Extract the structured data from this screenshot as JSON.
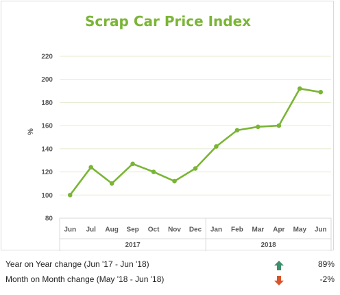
{
  "chart_data": {
    "type": "line",
    "title": "Scrap Car Price Index",
    "ylabel": "%",
    "xlabel": "",
    "ylim": [
      80,
      220
    ],
    "yticks": [
      80,
      100,
      120,
      140,
      160,
      180,
      200,
      220
    ],
    "categories": [
      "Jun",
      "Jul",
      "Aug",
      "Sep",
      "Oct",
      "Nov",
      "Dec",
      "Jan",
      "Feb",
      "Mar",
      "Apr",
      "May",
      "Jun"
    ],
    "category_groups": [
      {
        "label": "2017",
        "count": 7
      },
      {
        "label": "2018",
        "count": 6
      }
    ],
    "series": [
      {
        "values": [
          100,
          124,
          110,
          127,
          120,
          112,
          123,
          142,
          156,
          159,
          160,
          192,
          189
        ]
      }
    ],
    "grid": true,
    "legend": "none",
    "colors": {
      "line": "#7ab535",
      "title": "#7ab535",
      "grid": "#e3eccf"
    }
  },
  "stats": [
    {
      "label": "Year on Year change (Jun '17 - Jun '18)",
      "icon": "arrow-up-icon",
      "value": "89%",
      "color": "#3f8f6b"
    },
    {
      "label": "Month on Month change (May '18 - Jun '18)",
      "icon": "arrow-down-icon",
      "value": "-2%",
      "color": "#d9542b"
    }
  ]
}
